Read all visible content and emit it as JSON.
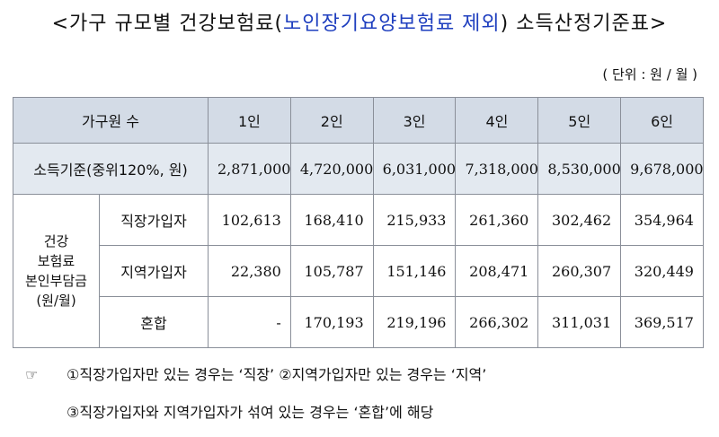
{
  "title": {
    "prefix": "<가구 규모별 건강보험료(",
    "highlight": "노인장기요양보험료 제외",
    "suffix": ") 소득산정기준표>"
  },
  "unit_note": "( 단위 : 원 / 월 )",
  "table": {
    "header_label": "가구원 수",
    "columns": [
      "1인",
      "2인",
      "3인",
      "4인",
      "5인",
      "6인"
    ],
    "income_label": "소득기준(중위120%, 원)",
    "income_values": [
      "2,871,000",
      "4,720,000",
      "6,031,000",
      "7,318,000",
      "8,530,000",
      "9,678,000"
    ],
    "group_label_line1": "건강",
    "group_label_line2": "보험료",
    "group_label_line3": "본인부담금",
    "group_label_line4": "(원/월)",
    "rows": [
      {
        "label": "직장가입자",
        "values": [
          "102,613",
          "168,410",
          "215,933",
          "261,360",
          "302,462",
          "354,964"
        ]
      },
      {
        "label": "지역가입자",
        "values": [
          "22,380",
          "105,787",
          "151,146",
          "208,471",
          "260,307",
          "320,449"
        ]
      },
      {
        "label": "혼합",
        "values": [
          "-",
          "170,193",
          "219,196",
          "266,302",
          "311,031",
          "369,517"
        ]
      }
    ]
  },
  "notes": {
    "pointer": "☞",
    "line1": "①직장가입자만 있는 경우는 ‘직장’ ②지역가입자만 있는 경우는 ‘지역’",
    "line2": "③직장가입자와 지역가입자가 섞여 있는 경우는 ‘혼합’에 해당"
  }
}
